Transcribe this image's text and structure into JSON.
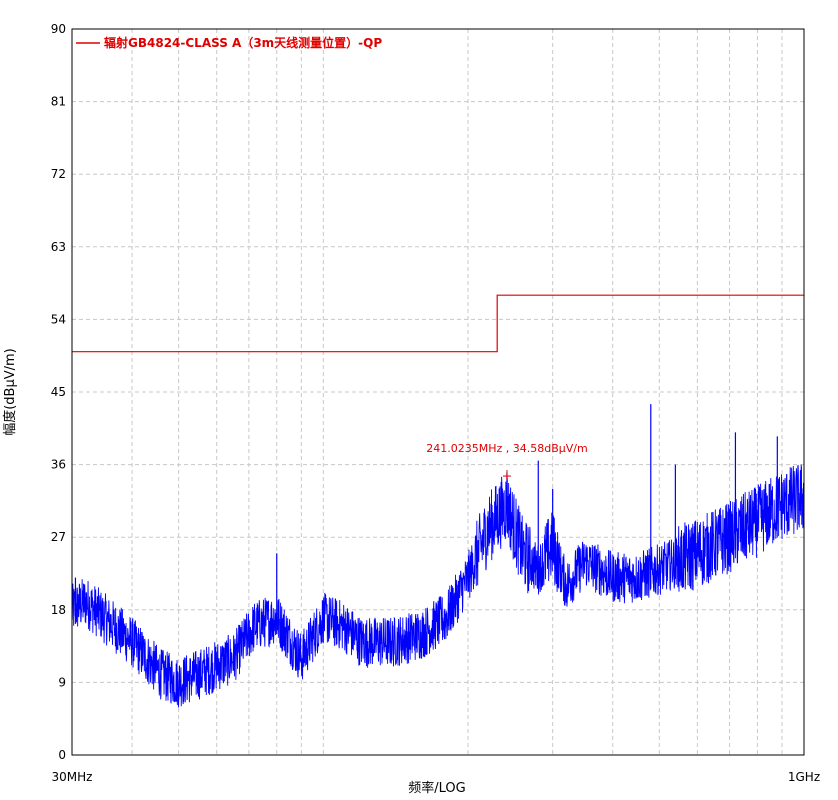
{
  "chart_data": {
    "type": "line",
    "xscale": "log",
    "xlim_hz": [
      30000000,
      1000000000
    ],
    "ylim": [
      0,
      90
    ],
    "grid": true,
    "legend_placement": "top-left",
    "ylabel": "幅度(dBµV/m)",
    "xlabel": "频率/LOG",
    "x_tick_labels": [
      {
        "label": "30MHz",
        "value_hz": 30000000
      },
      {
        "label": "1GHz",
        "value_hz": 1000000000
      }
    ],
    "y_ticks": [
      0,
      9,
      18,
      27,
      36,
      45,
      54,
      63,
      72,
      81,
      90
    ],
    "limit_line": {
      "name": "辐射GB4824-CLASS A（3m天线测量位置）-QP",
      "color": "#e00000",
      "segments": [
        {
          "x_start_hz": 30000000,
          "x_end_hz": 230000000,
          "y": 50
        },
        {
          "x_start_hz": 230000000,
          "x_end_hz": 1000000000,
          "y": 57
        }
      ]
    },
    "measurement_series": {
      "color": "#0000ff",
      "envelope": [
        {
          "x_hz": 30000000,
          "y": 18
        },
        {
          "x_hz": 32000000,
          "y": 19
        },
        {
          "x_hz": 35000000,
          "y": 17
        },
        {
          "x_hz": 40000000,
          "y": 14
        },
        {
          "x_hz": 46000000,
          "y": 10
        },
        {
          "x_hz": 50000000,
          "y": 9
        },
        {
          "x_hz": 55000000,
          "y": 10
        },
        {
          "x_hz": 65000000,
          "y": 12
        },
        {
          "x_hz": 72000000,
          "y": 16
        },
        {
          "x_hz": 80000000,
          "y": 17
        },
        {
          "x_hz": 90000000,
          "y": 12
        },
        {
          "x_hz": 100000000,
          "y": 17
        },
        {
          "x_hz": 110000000,
          "y": 16
        },
        {
          "x_hz": 120000000,
          "y": 14
        },
        {
          "x_hz": 140000000,
          "y": 14
        },
        {
          "x_hz": 160000000,
          "y": 15
        },
        {
          "x_hz": 180000000,
          "y": 17
        },
        {
          "x_hz": 200000000,
          "y": 22
        },
        {
          "x_hz": 220000000,
          "y": 28
        },
        {
          "x_hz": 241000000,
          "y": 31
        },
        {
          "x_hz": 260000000,
          "y": 25
        },
        {
          "x_hz": 280000000,
          "y": 23
        },
        {
          "x_hz": 300000000,
          "y": 26
        },
        {
          "x_hz": 320000000,
          "y": 21
        },
        {
          "x_hz": 350000000,
          "y": 24
        },
        {
          "x_hz": 400000000,
          "y": 22
        },
        {
          "x_hz": 450000000,
          "y": 22
        },
        {
          "x_hz": 500000000,
          "y": 23
        },
        {
          "x_hz": 600000000,
          "y": 25
        },
        {
          "x_hz": 700000000,
          "y": 27
        },
        {
          "x_hz": 800000000,
          "y": 29
        },
        {
          "x_hz": 900000000,
          "y": 31
        },
        {
          "x_hz": 1000000000,
          "y": 32
        }
      ],
      "spikes": [
        {
          "x_hz": 30500000,
          "y": 22
        },
        {
          "x_hz": 80000000,
          "y": 25
        },
        {
          "x_hz": 241000000,
          "y": 35
        },
        {
          "x_hz": 280000000,
          "y": 36.5
        },
        {
          "x_hz": 300000000,
          "y": 33
        },
        {
          "x_hz": 480000000,
          "y": 43.5
        },
        {
          "x_hz": 720000000,
          "y": 40
        },
        {
          "x_hz": 880000000,
          "y": 39.5
        },
        {
          "x_hz": 540000000,
          "y": 36
        }
      ]
    },
    "marker": {
      "x_hz": 241023500,
      "y": 34.58,
      "label": "241.0235MHz , 34.58dBµV/m",
      "color": "#e00000"
    }
  }
}
